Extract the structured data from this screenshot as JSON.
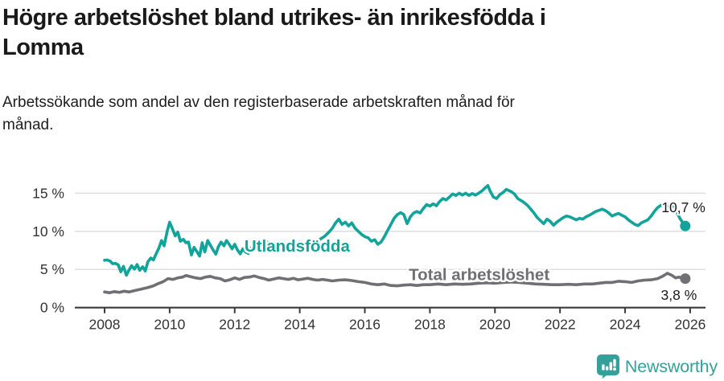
{
  "header": {
    "title_lines": [
      "Högre arbetslöshet bland utrikes- än inrikesfödda i",
      "Lomma"
    ],
    "subtitle_lines": [
      "Arbetssökande som andel av den registerbaserade arbetskraften månad för",
      "månad."
    ]
  },
  "branding": {
    "logo_text": "Newsworthy",
    "logo_color": "#35a09a",
    "logo_icon": "bar-chart-speech-bubble-icon"
  },
  "colors": {
    "foreign_born_line": "#12a39a",
    "total_line": "#6f6f74",
    "gridline": "#dcdcdc",
    "axis": "#3a3a3a",
    "axis_text": "#333333",
    "annotation_text": "#1a1a1a"
  },
  "chart_data": {
    "type": "line",
    "title": "Högre arbetslöshet bland utrikes- än inrikesfödda i Lomma",
    "subtitle": "Arbetssökande som andel av den registerbaserade arbetskraften månad för månad.",
    "xlabel": "",
    "ylabel": "",
    "xlim": [
      2007.1,
      2026.5
    ],
    "ylim": [
      0,
      16.5
    ],
    "grid": "horizontal",
    "x_ticks": [
      2008,
      2010,
      2012,
      2014,
      2016,
      2018,
      2020,
      2022,
      2024,
      2026
    ],
    "y_ticks": [
      {
        "label": "15 %",
        "value": 15
      },
      {
        "label": "10 %",
        "value": 10
      },
      {
        "label": "5 %",
        "value": 5
      },
      {
        "label": "0 %",
        "value": 0
      }
    ],
    "labels": [
      {
        "name": "series-label-utlandsfodda",
        "text": "Utlandsfödda",
        "x": 2012.3,
        "y": 7.35,
        "cls": "series-label",
        "color": "#12a39a"
      },
      {
        "name": "series-label-total",
        "text": "Total arbetslöshet",
        "x": 2017.35,
        "y": 3.6,
        "cls": "series-label",
        "color": "#6f6f74"
      },
      {
        "name": "end-value-utlandsfodda",
        "text": "10,7 %",
        "x": 2025.12,
        "y": 12.5,
        "cls": "value-label",
        "color": "#1a1a1a"
      },
      {
        "name": "end-value-total",
        "text": "3,8 %",
        "x": 2025.1,
        "y": 1.02,
        "cls": "value-label",
        "color": "#1a1a1a"
      }
    ],
    "series": [
      {
        "id": "utlandsfodda",
        "name": "Utlandsfödda",
        "color": "#12a39a",
        "end_value_label": "10,7 %",
        "points": [
          [
            2008.0,
            6.2
          ],
          [
            2008.08,
            6.25
          ],
          [
            2008.17,
            6.1
          ],
          [
            2008.25,
            5.75
          ],
          [
            2008.33,
            5.8
          ],
          [
            2008.42,
            5.6
          ],
          [
            2008.5,
            4.7
          ],
          [
            2008.58,
            5.4
          ],
          [
            2008.67,
            4.25
          ],
          [
            2008.75,
            4.9
          ],
          [
            2008.83,
            5.5
          ],
          [
            2008.92,
            5.05
          ],
          [
            2009.0,
            5.65
          ],
          [
            2009.08,
            4.9
          ],
          [
            2009.17,
            5.35
          ],
          [
            2009.25,
            4.8
          ],
          [
            2009.33,
            6.0
          ],
          [
            2009.42,
            6.5
          ],
          [
            2009.5,
            6.25
          ],
          [
            2009.58,
            7.0
          ],
          [
            2009.67,
            7.8
          ],
          [
            2009.75,
            8.8
          ],
          [
            2009.83,
            8.1
          ],
          [
            2009.92,
            9.9
          ],
          [
            2010.0,
            11.2
          ],
          [
            2010.08,
            10.4
          ],
          [
            2010.17,
            9.4
          ],
          [
            2010.25,
            9.9
          ],
          [
            2010.33,
            8.7
          ],
          [
            2010.42,
            8.95
          ],
          [
            2010.5,
            8.5
          ],
          [
            2010.58,
            8.6
          ],
          [
            2010.67,
            6.9
          ],
          [
            2010.75,
            7.9
          ],
          [
            2010.83,
            7.4
          ],
          [
            2010.92,
            6.75
          ],
          [
            2011.0,
            8.5
          ],
          [
            2011.08,
            7.3
          ],
          [
            2011.17,
            8.8
          ],
          [
            2011.25,
            8.2
          ],
          [
            2011.33,
            7.6
          ],
          [
            2011.42,
            7.0
          ],
          [
            2011.5,
            8.0
          ],
          [
            2011.58,
            8.6
          ],
          [
            2011.67,
            8.1
          ],
          [
            2011.75,
            8.8
          ],
          [
            2011.83,
            8.3
          ],
          [
            2011.92,
            7.7
          ],
          [
            2012.0,
            8.3
          ],
          [
            2012.08,
            7.6
          ],
          [
            2012.17,
            7.05
          ],
          [
            2012.25,
            7.7
          ],
          [
            2012.33,
            7.3
          ],
          [
            2012.42,
            7.1
          ],
          [
            2012.5,
            7.8
          ],
          [
            2012.58,
            8.0
          ],
          [
            2012.67,
            8.5
          ],
          [
            2012.83,
            8.2
          ],
          [
            2013.0,
            8.6
          ],
          [
            2013.17,
            8.25
          ],
          [
            2013.33,
            8.5
          ],
          [
            2013.5,
            8.2
          ],
          [
            2013.67,
            8.55
          ],
          [
            2013.83,
            8.3
          ],
          [
            2014.0,
            8.6
          ],
          [
            2014.17,
            8.35
          ],
          [
            2014.33,
            8.6
          ],
          [
            2014.5,
            8.4
          ],
          [
            2014.6,
            8.9
          ],
          [
            2014.75,
            9.3
          ],
          [
            2014.9,
            9.9
          ],
          [
            2015.0,
            10.4
          ],
          [
            2015.1,
            11.1
          ],
          [
            2015.2,
            11.6
          ],
          [
            2015.3,
            10.9
          ],
          [
            2015.4,
            11.2
          ],
          [
            2015.5,
            10.7
          ],
          [
            2015.6,
            11.1
          ],
          [
            2015.7,
            10.4
          ],
          [
            2015.8,
            10.0
          ],
          [
            2015.9,
            9.6
          ],
          [
            2016.0,
            9.3
          ],
          [
            2016.1,
            9.15
          ],
          [
            2016.2,
            8.7
          ],
          [
            2016.3,
            8.9
          ],
          [
            2016.4,
            8.3
          ],
          [
            2016.5,
            8.6
          ],
          [
            2016.6,
            9.3
          ],
          [
            2016.7,
            10.1
          ],
          [
            2016.8,
            10.9
          ],
          [
            2016.9,
            11.7
          ],
          [
            2017.0,
            12.2
          ],
          [
            2017.1,
            12.45
          ],
          [
            2017.2,
            12.2
          ],
          [
            2017.3,
            11.0
          ],
          [
            2017.4,
            11.9
          ],
          [
            2017.5,
            12.4
          ],
          [
            2017.6,
            12.6
          ],
          [
            2017.7,
            12.4
          ],
          [
            2017.8,
            13.0
          ],
          [
            2017.9,
            13.5
          ],
          [
            2018.0,
            13.3
          ],
          [
            2018.1,
            13.6
          ],
          [
            2018.2,
            13.35
          ],
          [
            2018.3,
            13.9
          ],
          [
            2018.4,
            14.3
          ],
          [
            2018.5,
            14.1
          ],
          [
            2018.6,
            14.5
          ],
          [
            2018.7,
            14.9
          ],
          [
            2018.8,
            14.7
          ],
          [
            2018.9,
            15.0
          ],
          [
            2019.0,
            14.75
          ],
          [
            2019.1,
            15.0
          ],
          [
            2019.2,
            14.7
          ],
          [
            2019.3,
            14.95
          ],
          [
            2019.4,
            14.75
          ],
          [
            2019.5,
            15.0
          ],
          [
            2019.6,
            15.3
          ],
          [
            2019.7,
            15.7
          ],
          [
            2019.78,
            16.0
          ],
          [
            2019.85,
            15.3
          ],
          [
            2019.95,
            14.5
          ],
          [
            2020.05,
            14.3
          ],
          [
            2020.15,
            14.8
          ],
          [
            2020.25,
            15.1
          ],
          [
            2020.35,
            15.5
          ],
          [
            2020.5,
            15.2
          ],
          [
            2020.6,
            14.9
          ],
          [
            2020.7,
            14.3
          ],
          [
            2020.85,
            13.9
          ],
          [
            2021.0,
            13.4
          ],
          [
            2021.1,
            12.9
          ],
          [
            2021.2,
            12.4
          ],
          [
            2021.3,
            11.8
          ],
          [
            2021.4,
            11.4
          ],
          [
            2021.5,
            11.0
          ],
          [
            2021.6,
            11.6
          ],
          [
            2021.7,
            11.3
          ],
          [
            2021.8,
            10.8
          ],
          [
            2021.9,
            11.2
          ],
          [
            2022.0,
            11.5
          ],
          [
            2022.1,
            11.8
          ],
          [
            2022.2,
            12.0
          ],
          [
            2022.3,
            11.9
          ],
          [
            2022.4,
            11.7
          ],
          [
            2022.5,
            11.5
          ],
          [
            2022.6,
            11.7
          ],
          [
            2022.7,
            11.6
          ],
          [
            2022.8,
            11.9
          ],
          [
            2022.9,
            12.1
          ],
          [
            2023.0,
            12.35
          ],
          [
            2023.1,
            12.6
          ],
          [
            2023.2,
            12.75
          ],
          [
            2023.3,
            12.9
          ],
          [
            2023.4,
            12.7
          ],
          [
            2023.5,
            12.4
          ],
          [
            2023.6,
            12.0
          ],
          [
            2023.7,
            12.2
          ],
          [
            2023.8,
            12.35
          ],
          [
            2023.9,
            12.1
          ],
          [
            2024.0,
            11.9
          ],
          [
            2024.1,
            11.5
          ],
          [
            2024.2,
            11.2
          ],
          [
            2024.3,
            10.9
          ],
          [
            2024.4,
            10.75
          ],
          [
            2024.5,
            11.1
          ],
          [
            2024.6,
            11.3
          ],
          [
            2024.7,
            11.5
          ],
          [
            2024.8,
            12.0
          ],
          [
            2024.9,
            12.6
          ],
          [
            2025.0,
            13.1
          ],
          [
            2025.1,
            13.4
          ],
          [
            2025.2,
            13.5
          ],
          [
            2025.3,
            13.3
          ],
          [
            2025.4,
            13.2
          ],
          [
            2025.5,
            13.35
          ],
          [
            2025.6,
            12.4
          ],
          [
            2025.7,
            11.6
          ],
          [
            2025.78,
            11.1
          ],
          [
            2025.85,
            10.7
          ]
        ]
      },
      {
        "id": "total",
        "name": "Total arbetslöshet",
        "color": "#6f6f74",
        "end_value_label": "3,8 %",
        "points": [
          [
            2008.0,
            2.05
          ],
          [
            2008.15,
            1.95
          ],
          [
            2008.3,
            2.1
          ],
          [
            2008.45,
            2.0
          ],
          [
            2008.6,
            2.15
          ],
          [
            2008.75,
            2.05
          ],
          [
            2008.9,
            2.2
          ],
          [
            2009.05,
            2.35
          ],
          [
            2009.2,
            2.5
          ],
          [
            2009.35,
            2.65
          ],
          [
            2009.5,
            2.85
          ],
          [
            2009.65,
            3.15
          ],
          [
            2009.8,
            3.4
          ],
          [
            2009.95,
            3.8
          ],
          [
            2010.1,
            3.7
          ],
          [
            2010.25,
            3.9
          ],
          [
            2010.4,
            4.0
          ],
          [
            2010.5,
            4.2
          ],
          [
            2010.65,
            4.05
          ],
          [
            2010.8,
            3.9
          ],
          [
            2010.95,
            3.8
          ],
          [
            2011.1,
            4.0
          ],
          [
            2011.25,
            4.1
          ],
          [
            2011.4,
            3.9
          ],
          [
            2011.55,
            3.8
          ],
          [
            2011.7,
            3.5
          ],
          [
            2011.85,
            3.65
          ],
          [
            2012.0,
            3.9
          ],
          [
            2012.15,
            3.7
          ],
          [
            2012.3,
            3.95
          ],
          [
            2012.45,
            4.0
          ],
          [
            2012.6,
            4.15
          ],
          [
            2012.75,
            3.95
          ],
          [
            2012.9,
            3.8
          ],
          [
            2013.05,
            3.6
          ],
          [
            2013.2,
            3.75
          ],
          [
            2013.35,
            3.9
          ],
          [
            2013.5,
            3.8
          ],
          [
            2013.65,
            3.7
          ],
          [
            2013.8,
            3.85
          ],
          [
            2013.95,
            3.65
          ],
          [
            2014.1,
            3.75
          ],
          [
            2014.25,
            3.85
          ],
          [
            2014.4,
            3.7
          ],
          [
            2014.55,
            3.6
          ],
          [
            2014.7,
            3.7
          ],
          [
            2014.85,
            3.6
          ],
          [
            2015.0,
            3.5
          ],
          [
            2015.2,
            3.6
          ],
          [
            2015.4,
            3.65
          ],
          [
            2015.6,
            3.55
          ],
          [
            2015.8,
            3.4
          ],
          [
            2016.0,
            3.3
          ],
          [
            2016.2,
            3.1
          ],
          [
            2016.4,
            3.0
          ],
          [
            2016.6,
            3.1
          ],
          [
            2016.8,
            2.9
          ],
          [
            2017.0,
            2.85
          ],
          [
            2017.2,
            2.95
          ],
          [
            2017.4,
            3.0
          ],
          [
            2017.6,
            2.9
          ],
          [
            2017.8,
            3.0
          ],
          [
            2018.0,
            3.0
          ],
          [
            2018.25,
            3.1
          ],
          [
            2018.5,
            3.0
          ],
          [
            2018.75,
            3.1
          ],
          [
            2019.0,
            3.05
          ],
          [
            2019.25,
            3.1
          ],
          [
            2019.5,
            3.2
          ],
          [
            2019.75,
            3.25
          ],
          [
            2020.0,
            3.2
          ],
          [
            2020.25,
            3.3
          ],
          [
            2020.5,
            3.35
          ],
          [
            2020.75,
            3.3
          ],
          [
            2021.0,
            3.2
          ],
          [
            2021.25,
            3.1
          ],
          [
            2021.5,
            3.05
          ],
          [
            2021.75,
            3.0
          ],
          [
            2022.0,
            3.0
          ],
          [
            2022.25,
            3.05
          ],
          [
            2022.5,
            3.0
          ],
          [
            2022.75,
            3.1
          ],
          [
            2023.0,
            3.1
          ],
          [
            2023.2,
            3.2
          ],
          [
            2023.4,
            3.3
          ],
          [
            2023.6,
            3.3
          ],
          [
            2023.8,
            3.45
          ],
          [
            2024.0,
            3.4
          ],
          [
            2024.2,
            3.3
          ],
          [
            2024.4,
            3.5
          ],
          [
            2024.6,
            3.6
          ],
          [
            2024.8,
            3.65
          ],
          [
            2025.0,
            3.8
          ],
          [
            2025.15,
            4.1
          ],
          [
            2025.3,
            4.5
          ],
          [
            2025.45,
            4.2
          ],
          [
            2025.55,
            3.9
          ],
          [
            2025.65,
            4.0
          ],
          [
            2025.75,
            3.9
          ],
          [
            2025.85,
            3.8
          ]
        ]
      }
    ]
  }
}
